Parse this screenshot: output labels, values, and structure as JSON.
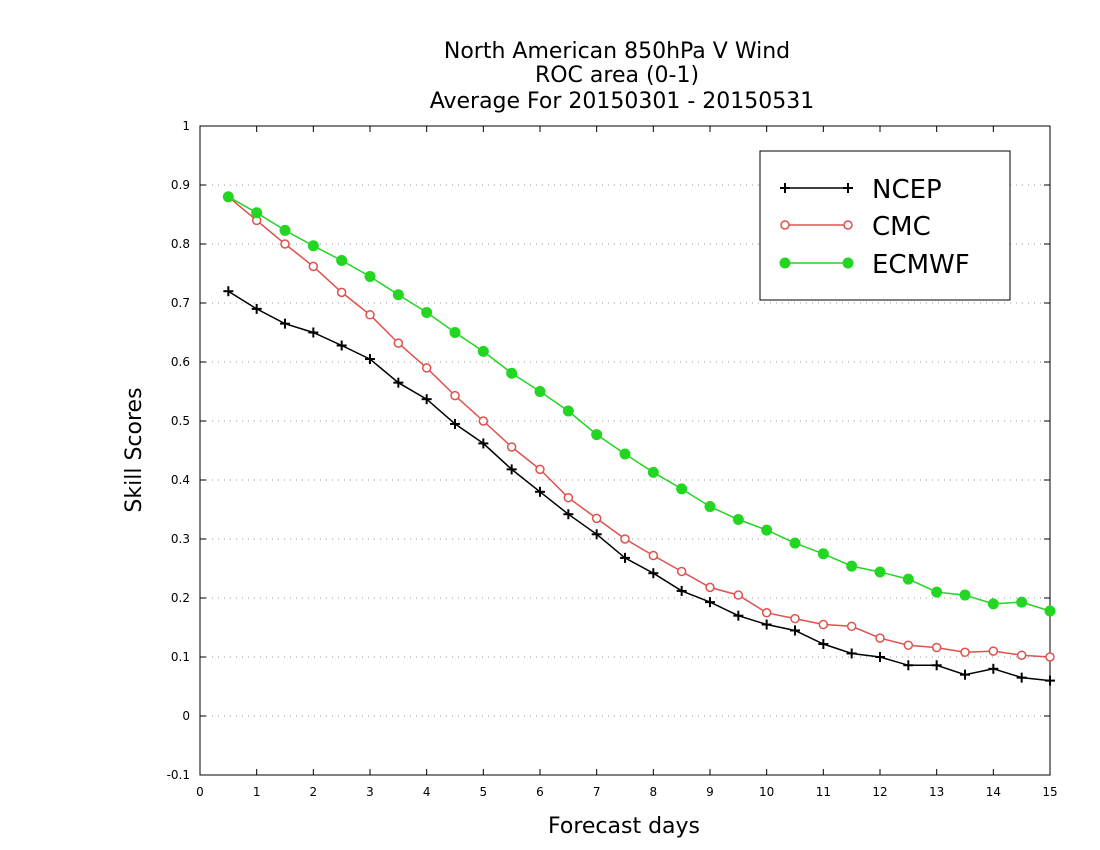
{
  "chart_data": {
    "type": "line",
    "title": [
      "North American 850hPa V Wind",
      "ROC area (0-1)",
      "Average For 20150301 - 20150531"
    ],
    "xlabel": "Forecast days",
    "ylabel": "Skill Scores",
    "xlim": [
      0,
      15
    ],
    "ylim": [
      -0.1,
      1
    ],
    "xticks": [
      0,
      1,
      2,
      3,
      4,
      5,
      6,
      7,
      8,
      9,
      10,
      11,
      12,
      13,
      14,
      15
    ],
    "xtick_labels": [
      "0",
      "1",
      "2",
      "3",
      "4",
      "5",
      "6",
      "7",
      "8",
      "9",
      "10",
      "11",
      "12",
      "13",
      "14",
      "15"
    ],
    "yticks": [
      -0.1,
      0,
      0.1,
      0.2,
      0.3,
      0.4,
      0.5,
      0.6,
      0.7,
      0.8,
      0.9,
      1
    ],
    "ytick_labels": [
      "-0.1",
      "0",
      "0.1",
      "0.2",
      "0.3",
      "0.4",
      "0.5",
      "0.6",
      "0.7",
      "0.8",
      "0.9",
      "1"
    ],
    "grid": "horizontal-dotted",
    "legend_position": "top-right",
    "x": [
      0.5,
      1.0,
      1.5,
      2.0,
      2.5,
      3.0,
      3.5,
      4.0,
      4.5,
      5.0,
      5.5,
      6.0,
      6.5,
      7.0,
      7.5,
      8.0,
      8.5,
      9.0,
      9.5,
      10.0,
      10.5,
      11.0,
      11.5,
      12.0,
      12.5,
      13.0,
      13.5,
      14.0,
      14.5,
      15.0
    ],
    "series": [
      {
        "name": "NCEP",
        "color": "#000000",
        "marker": "plus",
        "values": [
          0.72,
          0.69,
          0.665,
          0.65,
          0.628,
          0.605,
          0.565,
          0.537,
          0.495,
          0.462,
          0.418,
          0.38,
          0.342,
          0.308,
          0.268,
          0.242,
          0.212,
          0.193,
          0.17,
          0.155,
          0.145,
          0.122,
          0.106,
          0.1,
          0.086,
          0.086,
          0.07,
          0.08,
          0.065,
          0.06
        ]
      },
      {
        "name": "CMC",
        "color": "#e0504c",
        "marker": "open-circle",
        "values": [
          0.88,
          0.84,
          0.8,
          0.762,
          0.718,
          0.68,
          0.632,
          0.59,
          0.543,
          0.5,
          0.456,
          0.418,
          0.37,
          0.335,
          0.3,
          0.272,
          0.245,
          0.218,
          0.205,
          0.175,
          0.165,
          0.155,
          0.152,
          0.132,
          0.12,
          0.116,
          0.108,
          0.11,
          0.103,
          0.1
        ]
      },
      {
        "name": "ECMWF",
        "color": "#22d622",
        "marker": "filled-circle",
        "values": [
          0.88,
          0.853,
          0.823,
          0.797,
          0.772,
          0.745,
          0.714,
          0.684,
          0.65,
          0.618,
          0.581,
          0.55,
          0.517,
          0.477,
          0.444,
          0.413,
          0.385,
          0.355,
          0.333,
          0.315,
          0.293,
          0.275,
          0.254,
          0.244,
          0.232,
          0.21,
          0.205,
          0.19,
          0.193,
          0.178
        ]
      }
    ]
  }
}
